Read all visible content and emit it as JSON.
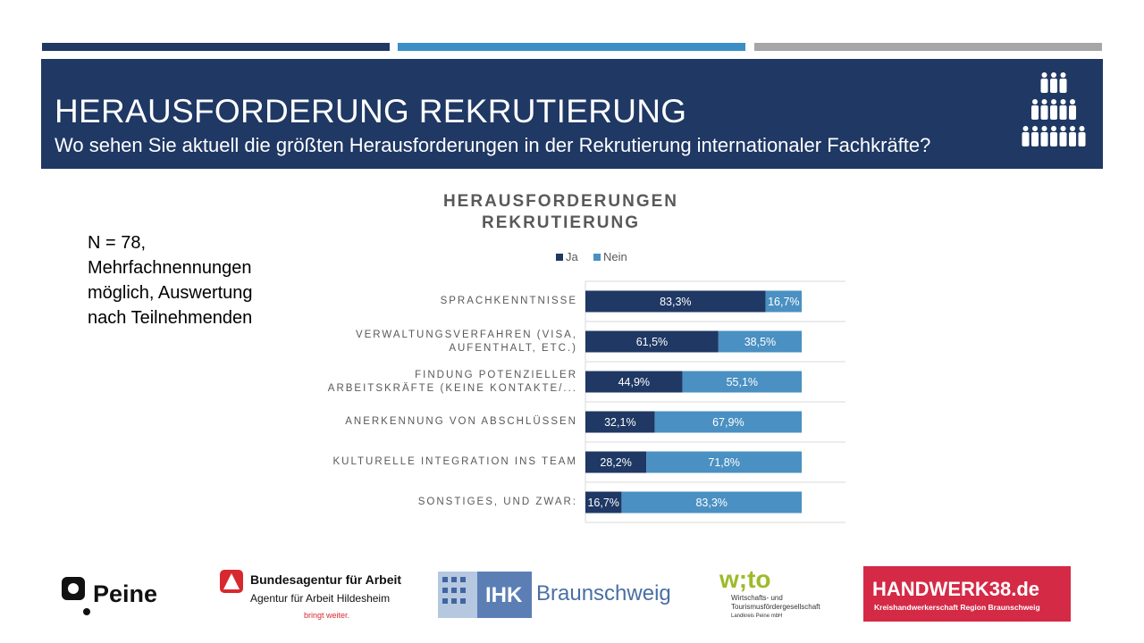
{
  "header": {
    "title": "HERAUSFORDERUNG REKRUTIERUNG",
    "subtitle": "Wo sehen Sie aktuell die größten Herausforderungen in der Rekrutierung internationaler Fachkräfte?",
    "icon": "people-group-icon"
  },
  "note": {
    "lines": [
      "N = 78,",
      "Mehrfachnennungen",
      "möglich, Auswertung",
      "nach Teilnehmenden"
    ]
  },
  "colors": {
    "dark_navy": "#1f3864",
    "mid_blue": "#3b8fc4",
    "grey": "#a6a6a6",
    "handwerk_red": "#d42a46"
  },
  "chart_data": {
    "type": "bar",
    "orientation": "horizontal",
    "stacked": true,
    "title": "HERAUSFORDERUNGEN REKRUTIERUNG",
    "title_lines": [
      "HERAUSFORDERUNGEN",
      "REKRUTIERUNG"
    ],
    "legend_position": "top",
    "categories": [
      [
        "SPRACHKENNTNISSE"
      ],
      [
        "VERWALTUNGSVERFAHREN (VISA,",
        "AUFENTHALT, ETC.)"
      ],
      [
        "FINDUNG POTENZIELLER",
        "ARBEITSKRÄFTE (KEINE KONTAKTE/..."
      ],
      [
        "ANERKENNUNG VON ABSCHLÜSSEN"
      ],
      [
        "KULTURELLE INTEGRATION INS TEAM"
      ],
      [
        "SONSTIGES, UND ZWAR:"
      ]
    ],
    "series": [
      {
        "name": "Ja",
        "color": "#1f3864",
        "values": [
          83.3,
          61.5,
          44.9,
          32.1,
          28.2,
          16.7
        ],
        "labels": [
          "83,3%",
          "61,5%",
          "44,9%",
          "32,1%",
          "28,2%",
          "16,7%"
        ]
      },
      {
        "name": "Nein",
        "color": "#4a90c2",
        "values": [
          16.7,
          38.5,
          55.1,
          67.9,
          71.8,
          83.3
        ],
        "labels": [
          "16,7%",
          "38,5%",
          "55,1%",
          "67,9%",
          "71,8%",
          "83,3%"
        ]
      }
    ],
    "xlim": [
      0,
      100
    ],
    "grid": true
  },
  "logos": {
    "peine": "Peine",
    "ba_line1": "Bundesagentur für Arbeit",
    "ba_line2": "Agentur für Arbeit Hildesheim",
    "ba_line3": "bringt weiter.",
    "ihk_prefix": "IHK",
    "ihk_city": "Braunschweig",
    "wito_main": "w;to",
    "wito_line1": "Wirtschafts- und",
    "wito_line2": "Tourismusfördergesellschaft",
    "wito_line3": "Landkreis Peine mbH",
    "handwerk_main": "HANDWERK38.de",
    "handwerk_sub": "Kreishandwerkerschaft Region Braunschweig"
  }
}
